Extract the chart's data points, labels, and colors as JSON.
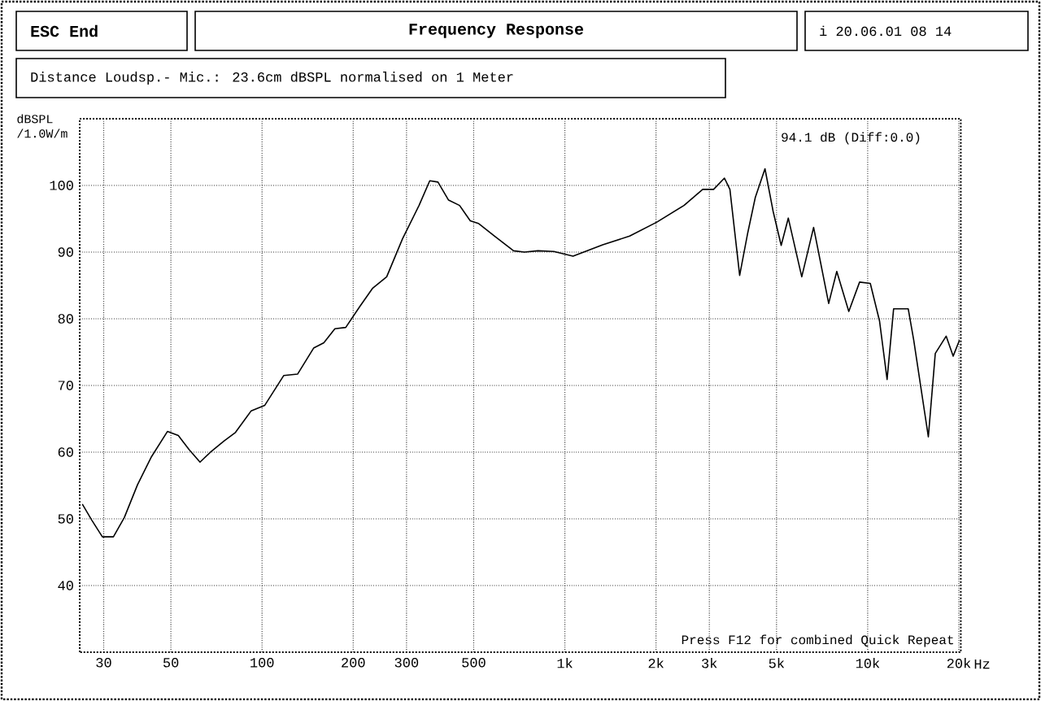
{
  "chart_data": {
    "type": "line",
    "title": "Frequency Response",
    "subtitle": "Distance Loudsp.- Mic.: 23.6cm dBSPL normalised on 1 Meter",
    "ylabel": "dBSPL /1.0W/m",
    "annotations": [
      "ESC End",
      "i 20.06.01 08 14",
      "94.1 dB (Diff:0.0)",
      "Press F12 for combined Quick Repeat"
    ],
    "log": "x",
    "grid": true,
    "marker": "none",
    "line_style": "solid",
    "xlim": [
      25,
      20300
    ],
    "ylim": [
      30,
      110
    ],
    "xticks": [
      30,
      50,
      100,
      200,
      300,
      500,
      {
        "value": 1000,
        "label": "1k"
      },
      {
        "value": 2000,
        "label": "2k"
      },
      {
        "value": 3000,
        "label": "3k"
      },
      {
        "value": 5000,
        "label": "5k"
      },
      {
        "value": 10000,
        "label": "10k"
      },
      {
        "value": 20000,
        "label": "20k"
      }
    ],
    "xlabel": "Hz",
    "yticks": [
      40,
      50,
      60,
      70,
      80,
      90,
      100
    ],
    "series": [
      {
        "color": "#000000",
        "x": [
          25.5,
          27.4,
          29.7,
          32.3,
          35.1,
          38.8,
          43.0,
          48.7,
          52.9,
          57.4,
          62.4,
          67.6,
          75.0,
          81.5,
          92.1,
          102,
          118,
          131,
          148,
          160,
          174,
          189,
          210,
          232,
          258,
          291,
          330,
          358,
          381,
          413,
          449,
          487,
          518,
          586,
          677,
          735,
          815,
          920,
          1064,
          1334,
          1637,
          2013,
          2474,
          2852,
          3098,
          3365,
          3508,
          3778,
          4018,
          4255,
          4580,
          4873,
          5180,
          5468,
          6058,
          6629,
          7434,
          7906,
          8662,
          9403,
          10200,
          10940,
          11590,
          12180,
          13610,
          14190,
          15860,
          16720,
          18160,
          19160,
          20100
        ],
        "values": [
          52.2,
          49.8,
          47.3,
          47.3,
          50.2,
          55.1,
          59.2,
          63.1,
          62.5,
          60.4,
          58.5,
          60.0,
          61.7,
          62.9,
          66.2,
          67.0,
          71.5,
          71.7,
          75.6,
          76.4,
          78.5,
          78.7,
          81.8,
          84.6,
          86.3,
          92.0,
          97.0,
          100.7,
          100.5,
          97.8,
          97.0,
          94.7,
          94.3,
          92.4,
          90.2,
          90.0,
          90.2,
          90.1,
          89.4,
          91.1,
          92.4,
          94.5,
          97.0,
          99.4,
          99.4,
          101.1,
          99.4,
          86.5,
          92.9,
          98.2,
          102.5,
          96.1,
          91.0,
          95.1,
          86.3,
          93.7,
          82.3,
          87.1,
          81.1,
          85.5,
          85.3,
          79.7,
          70.9,
          81.5,
          81.5,
          76.8,
          62.3,
          74.8,
          77.4,
          74.4,
          76.8
        ]
      }
    ]
  }
}
